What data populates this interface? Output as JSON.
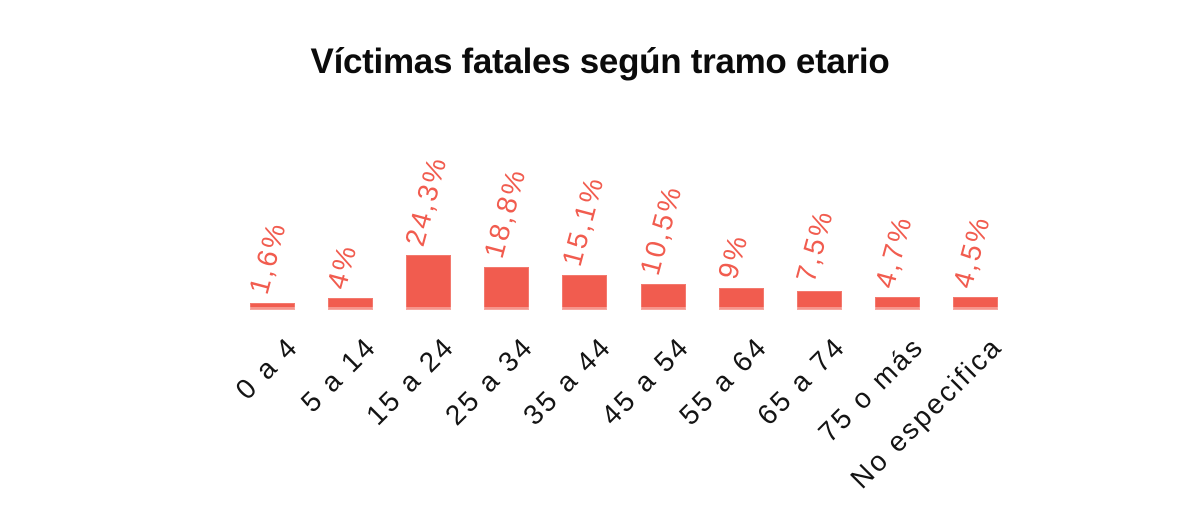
{
  "title": "Víctimas fatales según tramo etario",
  "chart_data": {
    "type": "bar",
    "title": "Víctimas fatales según tramo etario",
    "categories": [
      "0 a 4",
      "5 a 14",
      "15 a 24",
      "25 a 34",
      "35 a 44",
      "45 a 54",
      "55 a 64",
      "65 a 74",
      "75 o más",
      "No especifica"
    ],
    "values": [
      1.6,
      4,
      24.3,
      18.8,
      15.1,
      10.5,
      9,
      7.5,
      4.7,
      4.5
    ],
    "value_labels": [
      "1,6%",
      "4%",
      "24,3%",
      "18,8%",
      "15,1%",
      "10,5%",
      "9%",
      "7,5%",
      "4,7%",
      "4,5%"
    ],
    "xlabel": "",
    "ylabel": "",
    "ylim": [
      0,
      25
    ],
    "grid": false,
    "legend": "none",
    "axes_visible": false,
    "value_label_rotation_deg": -75,
    "category_label_rotation_deg": -45,
    "colors": {
      "background": "#FFFFFF",
      "bar": "#F15C4F",
      "value_label": "#F15C4F",
      "category_label": "#141414",
      "title": "#0B0B0B"
    }
  }
}
